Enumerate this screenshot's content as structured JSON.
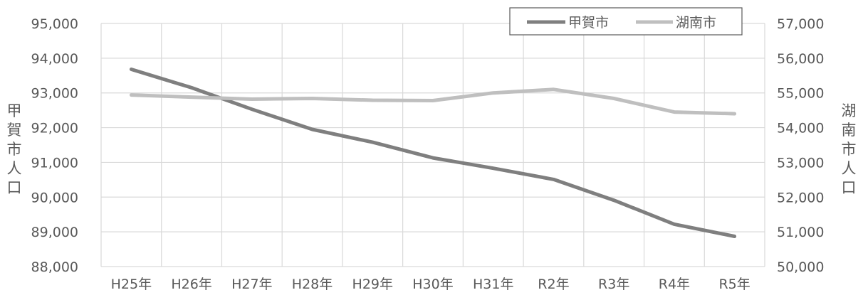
{
  "chart_data": {
    "type": "line",
    "categories": [
      "H25年",
      "H26年",
      "H27年",
      "H28年",
      "H29年",
      "H30年",
      "H31年",
      "R2年",
      "R3年",
      "R4年",
      "R5年"
    ],
    "series": [
      {
        "name": "甲賀市",
        "axis": "left",
        "color": "#7f7f7f",
        "values": [
          93680,
          93150,
          92530,
          91950,
          91580,
          91130,
          90830,
          90510,
          89910,
          89220,
          88870
        ]
      },
      {
        "name": "湖南市",
        "axis": "right",
        "color": "#bfbfbf",
        "values": [
          54940,
          54880,
          54820,
          54840,
          54790,
          54780,
          55000,
          55100,
          54840,
          54450,
          54400
        ]
      }
    ],
    "y_left": {
      "label_chars": [
        "甲",
        "賀",
        "市",
        "人",
        "口"
      ],
      "ylim": [
        88000,
        95000
      ],
      "ticks": [
        "88,000",
        "89,000",
        "90,000",
        "91,000",
        "92,000",
        "93,000",
        "94,000",
        "95,000"
      ]
    },
    "y_right": {
      "label_chars": [
        "湖",
        "南",
        "市",
        "人",
        "口"
      ],
      "ylim": [
        50000,
        57000
      ],
      "ticks": [
        "50,000",
        "51,000",
        "52,000",
        "53,000",
        "54,000",
        "55,000",
        "56,000",
        "57,000"
      ]
    },
    "grid": true,
    "legend_position": "top-right"
  }
}
